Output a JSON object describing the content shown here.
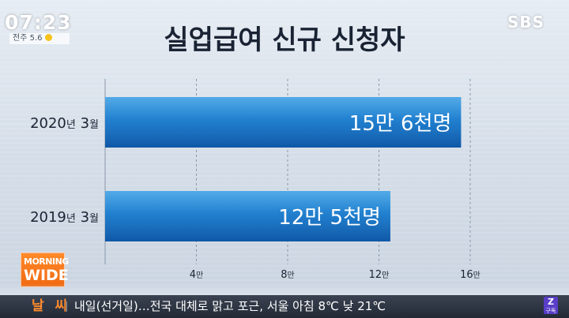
{
  "overlay": {
    "clock": "07:23",
    "weather": "전주 5.6",
    "broadcaster": "SBS",
    "program_line1": "MORNING",
    "program_line2": "WIDE",
    "subscribe": "구독"
  },
  "ticker": {
    "label": "날 씨",
    "text": "내일(선거일)…전국 대체로 맑고 포근, 서울 아침 8℃ 낮 21℃"
  },
  "colors": {
    "bar_top": "#1a8ee0",
    "bar_bottom": "#0f5fb4",
    "title": "#1a2333",
    "ticker_label": "#ff8b2d",
    "badge": "#f06a12"
  },
  "chart_data": {
    "type": "bar",
    "orientation": "horizontal",
    "title": "실업급여 신규 신청자",
    "categories": [
      {
        "year": "2020",
        "year_unit": "년",
        "month": "3",
        "month_unit": "월"
      },
      {
        "year": "2019",
        "year_unit": "년",
        "month": "3",
        "month_unit": "월"
      }
    ],
    "values": [
      15.6,
      12.5
    ],
    "value_unit": "만",
    "data_labels": [
      "15만 6천명",
      "12만 5천명"
    ],
    "xlim": [
      0,
      16
    ],
    "ticks": [
      {
        "value": 4,
        "num": "4",
        "unit": "만"
      },
      {
        "value": 8,
        "num": "8",
        "unit": "만"
      },
      {
        "value": 12,
        "num": "12",
        "unit": "만"
      },
      {
        "value": 16,
        "num": "16",
        "unit": "만"
      }
    ],
    "grid": true,
    "legend": "none"
  }
}
